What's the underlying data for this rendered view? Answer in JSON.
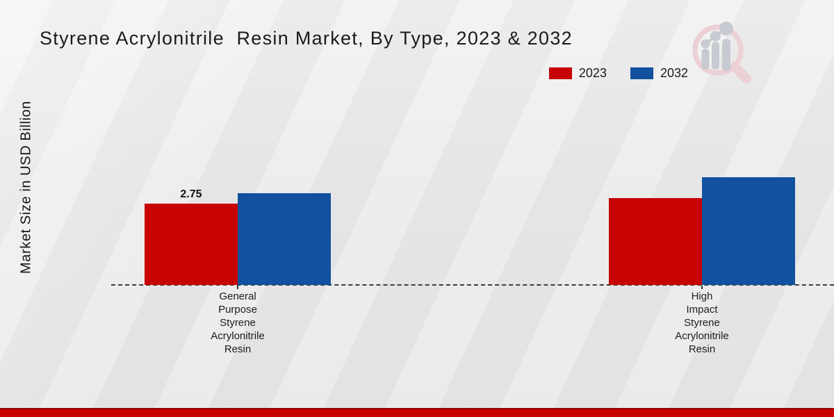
{
  "header": {
    "title": "Styrene Acrylonitrile  Resin Market, By Type, 2023 & 2032"
  },
  "chart_data": {
    "type": "bar",
    "title": "Styrene Acrylonitrile Resin Market, By Type, 2023 & 2032",
    "ylabel": "Market Size in USD Billion",
    "xlabel": "",
    "categories": [
      "General Purpose Styrene Acrylonitrile Resin",
      "High Impact Styrene Acrylonitrile Resin"
    ],
    "category_label_lines": [
      [
        "General",
        "Purpose",
        "Styrene",
        "Acrylonitrile",
        "Resin"
      ],
      [
        "High",
        "Impact",
        "Styrene",
        "Acrylonitrile",
        "Resin"
      ]
    ],
    "series": [
      {
        "name": "2023",
        "color": "#c70303",
        "values": [
          2.75,
          2.95
        ],
        "labels": [
          "2.75",
          ""
        ]
      },
      {
        "name": "2032",
        "color": "#11519e",
        "values": [
          3.1,
          3.65
        ],
        "labels": [
          "",
          ""
        ]
      }
    ],
    "legend_position": "top-right",
    "grid": false,
    "axis_value_ticks_visible": false,
    "baseline_style": "dashed"
  },
  "branding": {
    "logo_icon": "magnifier-bar-chart-logo",
    "ring_color": "#ebd0d5",
    "bars_color": "#c7cad0"
  },
  "footer": {
    "accent_color": "#c60100"
  }
}
